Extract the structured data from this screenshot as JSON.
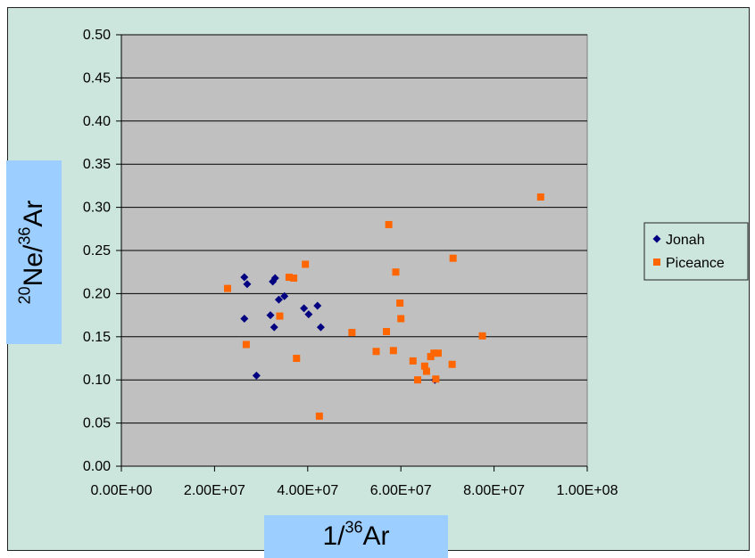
{
  "chart_data": {
    "type": "scatter",
    "title": "",
    "xlabel": {
      "prefix": "1/",
      "sup": "36",
      "suffix": "Ar"
    },
    "ylabel": {
      "sup1": "20",
      "mid": "Ne/",
      "sup2": "36",
      "suffix": "Ar"
    },
    "xlim": [
      0,
      100000000
    ],
    "ylim": [
      0,
      0.5
    ],
    "x_ticks": [
      0,
      20000000,
      40000000,
      60000000,
      80000000,
      100000000
    ],
    "x_tick_labels": [
      "0.00E+00",
      "2.00E+07",
      "4.00E+07",
      "6.00E+07",
      "8.00E+07",
      "1.00E+08"
    ],
    "y_ticks": [
      0,
      0.05,
      0.1,
      0.15,
      0.2,
      0.25,
      0.3,
      0.35,
      0.4,
      0.45,
      0.5
    ],
    "y_tick_labels": [
      "0.00",
      "0.05",
      "0.10",
      "0.15",
      "0.20",
      "0.25",
      "0.30",
      "0.35",
      "0.40",
      "0.45",
      "0.50"
    ],
    "grid": "horizontal",
    "legend_position": "right",
    "plot_background": "#c0c0c0",
    "chart_background": "#cce5dd",
    "series": [
      {
        "name": "Jonah",
        "marker": "diamond",
        "color": "#000080",
        "points": [
          [
            26400000,
            0.219
          ],
          [
            27000000,
            0.211
          ],
          [
            26400000,
            0.171
          ],
          [
            29000000,
            0.105
          ],
          [
            32000000,
            0.175
          ],
          [
            32500000,
            0.214
          ],
          [
            33000000,
            0.218
          ],
          [
            32800000,
            0.161
          ],
          [
            33800000,
            0.193
          ],
          [
            35000000,
            0.197
          ],
          [
            39200000,
            0.183
          ],
          [
            40200000,
            0.176
          ],
          [
            42100000,
            0.186
          ],
          [
            42800000,
            0.161
          ],
          [
            67300000,
            0.1
          ]
        ]
      },
      {
        "name": "Piceance",
        "marker": "square",
        "color": "#ff6600",
        "points": [
          [
            22800000,
            0.206
          ],
          [
            26800000,
            0.141
          ],
          [
            34000000,
            0.174
          ],
          [
            36000000,
            0.219
          ],
          [
            37000000,
            0.218
          ],
          [
            37600000,
            0.125
          ],
          [
            39500000,
            0.234
          ],
          [
            42500000,
            0.058
          ],
          [
            49500000,
            0.155
          ],
          [
            54700000,
            0.133
          ],
          [
            56900000,
            0.156
          ],
          [
            57400000,
            0.28
          ],
          [
            58400000,
            0.134
          ],
          [
            58900000,
            0.225
          ],
          [
            59800000,
            0.189
          ],
          [
            60000000,
            0.171
          ],
          [
            62600000,
            0.122
          ],
          [
            63600000,
            0.1
          ],
          [
            65100000,
            0.116
          ],
          [
            65500000,
            0.11
          ],
          [
            66400000,
            0.127
          ],
          [
            67100000,
            0.131
          ],
          [
            67500000,
            0.101
          ],
          [
            68000000,
            0.131
          ],
          [
            71000000,
            0.118
          ],
          [
            71200000,
            0.241
          ],
          [
            77500000,
            0.151
          ],
          [
            90000000,
            0.312
          ]
        ]
      }
    ]
  }
}
